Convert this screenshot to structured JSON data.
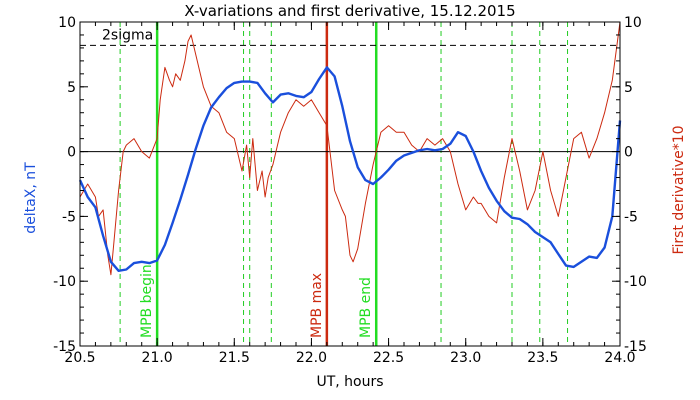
{
  "chart_data": {
    "type": "line",
    "title": "X-variations and first derivative, 15.12.2015",
    "xlabel": "UT, hours",
    "ylabel_left": "deltaX, nT",
    "ylabel_right": "First derivative*10",
    "xlim": [
      20.5,
      24.0
    ],
    "ylim": [
      -15,
      10
    ],
    "x_ticks": [
      20.5,
      21.0,
      21.5,
      22.0,
      22.5,
      23.0,
      23.5,
      24.0
    ],
    "x_tick_labels": [
      "20.5",
      "21.0",
      "21.5",
      "22.0",
      "22.5",
      "23.0",
      "23.5",
      "24.0"
    ],
    "y_ticks": [
      -15,
      -10,
      -5,
      0,
      5,
      10
    ],
    "y_tick_labels": [
      "-15",
      "-10",
      "-5",
      "0",
      "5",
      "10"
    ],
    "grid": false,
    "colors": {
      "deltaX": "#1a4fdc",
      "derivative": "#cc2a10",
      "marker_green": "#22dd22",
      "marker_red": "#cc2a10",
      "dashed_green": "#22cc22",
      "left_label": "#1a4fdc",
      "right_label": "#cc2a10"
    },
    "series": [
      {
        "key": "deltaX",
        "axis": "left",
        "x": [
          20.5,
          20.55,
          20.6,
          20.65,
          20.7,
          20.75,
          20.8,
          20.85,
          20.9,
          20.95,
          21.0,
          21.05,
          21.1,
          21.15,
          21.2,
          21.25,
          21.3,
          21.35,
          21.4,
          21.45,
          21.5,
          21.55,
          21.6,
          21.65,
          21.7,
          21.75,
          21.8,
          21.85,
          21.9,
          21.95,
          22.0,
          22.05,
          22.1,
          22.15,
          22.2,
          22.25,
          22.3,
          22.35,
          22.4,
          22.45,
          22.5,
          22.55,
          22.6,
          22.65,
          22.7,
          22.75,
          22.8,
          22.85,
          22.9,
          22.95,
          23.0,
          23.05,
          23.1,
          23.15,
          23.2,
          23.25,
          23.3,
          23.35,
          23.4,
          23.45,
          23.5,
          23.55,
          23.6,
          23.65,
          23.7,
          23.75,
          23.8,
          23.85,
          23.9,
          23.95,
          24.0
        ],
        "values": [
          -2.2,
          -3.5,
          -4.3,
          -6.5,
          -8.5,
          -9.2,
          -9.1,
          -8.6,
          -8.5,
          -8.6,
          -8.4,
          -7.2,
          -5.5,
          -3.7,
          -1.8,
          0.2,
          2.0,
          3.4,
          4.2,
          4.9,
          5.3,
          5.4,
          5.4,
          5.3,
          4.5,
          3.8,
          4.4,
          4.5,
          4.3,
          4.2,
          4.6,
          5.6,
          6.5,
          5.8,
          3.5,
          0.8,
          -1.2,
          -2.2,
          -2.5,
          -2.0,
          -1.4,
          -0.7,
          -0.3,
          -0.1,
          0.1,
          0.2,
          0.1,
          0.2,
          0.6,
          1.5,
          1.2,
          0.0,
          -1.5,
          -2.8,
          -3.8,
          -4.6,
          -5.1,
          -5.2,
          -5.6,
          -6.2,
          -6.6,
          -7.0,
          -7.9,
          -8.8,
          -8.9,
          -8.5,
          -8.1,
          -8.2,
          -7.4,
          -5.0,
          2.4
        ]
      },
      {
        "key": "derivative",
        "axis": "right",
        "x": [
          20.5,
          20.55,
          20.6,
          20.62,
          20.65,
          20.68,
          20.7,
          20.72,
          20.75,
          20.78,
          20.8,
          20.85,
          20.9,
          20.95,
          21.0,
          21.02,
          21.05,
          21.08,
          21.1,
          21.12,
          21.15,
          21.18,
          21.2,
          21.22,
          21.25,
          21.28,
          21.3,
          21.35,
          21.4,
          21.45,
          21.5,
          21.55,
          21.58,
          21.6,
          21.62,
          21.65,
          21.68,
          21.7,
          21.72,
          21.75,
          21.78,
          21.8,
          21.85,
          21.9,
          21.95,
          22.0,
          22.05,
          22.1,
          22.15,
          22.2,
          22.22,
          22.25,
          22.27,
          22.3,
          22.35,
          22.4,
          22.45,
          22.5,
          22.55,
          22.6,
          22.65,
          22.7,
          22.75,
          22.8,
          22.85,
          22.9,
          22.95,
          23.0,
          23.05,
          23.08,
          23.1,
          23.15,
          23.2,
          23.25,
          23.3,
          23.35,
          23.4,
          23.45,
          23.5,
          23.55,
          23.6,
          23.65,
          23.7,
          23.75,
          23.8,
          23.85,
          23.9,
          23.95,
          24.0
        ],
        "values": [
          -3.5,
          -2.5,
          -3.5,
          -5.0,
          -4.5,
          -8.0,
          -9.5,
          -7.0,
          -3.0,
          0.0,
          0.5,
          1.0,
          0.0,
          -0.5,
          1.0,
          4.0,
          6.5,
          5.5,
          5.0,
          6.0,
          5.5,
          7.0,
          8.5,
          9.0,
          7.5,
          6.0,
          5.0,
          3.5,
          3.0,
          1.5,
          1.0,
          -1.5,
          0.5,
          -2.0,
          1.0,
          -3.0,
          -1.5,
          -3.5,
          -2.0,
          -1.0,
          0.5,
          1.5,
          3.0,
          4.0,
          3.5,
          4.0,
          3.0,
          2.0,
          -3.0,
          -4.5,
          -5.0,
          -8.0,
          -8.5,
          -7.5,
          -4.0,
          -1.0,
          1.5,
          2.0,
          1.5,
          1.5,
          0.5,
          0.0,
          1.0,
          0.5,
          1.0,
          0.0,
          -2.5,
          -4.5,
          -3.5,
          -4.0,
          -4.0,
          -5.0,
          -5.5,
          -2.0,
          1.0,
          -1.5,
          -4.5,
          -3.0,
          0.0,
          -3.0,
          -5.0,
          -2.0,
          1.0,
          1.5,
          -0.5,
          1.0,
          3.0,
          5.5,
          10.0
        ]
      }
    ],
    "zero_line": 0,
    "sigma_line": {
      "value": 8.2,
      "label": "2sigma"
    },
    "markers": [
      {
        "x": 21.0,
        "style": "solid",
        "color_key": "marker_green",
        "label": "MPB begin"
      },
      {
        "x": 22.1,
        "style": "solid",
        "color_key": "marker_red",
        "label": "MPB max"
      },
      {
        "x": 22.42,
        "style": "solid",
        "color_key": "marker_green",
        "label": "MPB end"
      },
      {
        "x": 20.76,
        "style": "dashed",
        "color_key": "dashed_green",
        "label": ""
      },
      {
        "x": 21.56,
        "style": "dashed",
        "color_key": "dashed_green",
        "label": ""
      },
      {
        "x": 21.6,
        "style": "dashed",
        "color_key": "dashed_green",
        "label": ""
      },
      {
        "x": 21.74,
        "style": "dashed",
        "color_key": "dashed_green",
        "label": ""
      },
      {
        "x": 22.84,
        "style": "dashed",
        "color_key": "dashed_green",
        "label": ""
      },
      {
        "x": 23.3,
        "style": "dashed",
        "color_key": "dashed_green",
        "label": ""
      },
      {
        "x": 23.48,
        "style": "dashed",
        "color_key": "dashed_green",
        "label": ""
      },
      {
        "x": 23.66,
        "style": "dashed",
        "color_key": "dashed_green",
        "label": ""
      }
    ]
  }
}
